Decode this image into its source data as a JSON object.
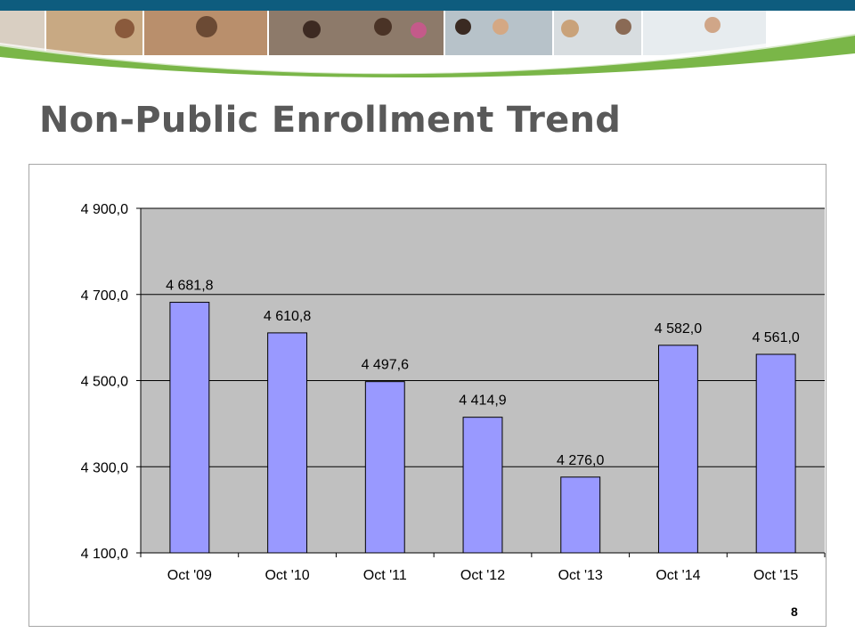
{
  "slide": {
    "title": "Non-Public Enrollment Trend",
    "page_number": "8"
  },
  "colors": {
    "header_band": "#0e5c7e",
    "swoosh_green": "#7ab648",
    "bar_fill": "#9999ff",
    "plot_background": "#c0c0c0",
    "title_text": "#595959"
  },
  "chart_data": {
    "type": "bar",
    "categories": [
      "Oct '09",
      "Oct '10",
      "Oct '11",
      "Oct '12",
      "Oct '13",
      "Oct '14",
      "Oct '15"
    ],
    "values": [
      4681.8,
      4610.8,
      4497.6,
      4414.9,
      4276.0,
      4582.0,
      4561.0
    ],
    "value_labels": [
      "4 681,8",
      "4 610,8",
      "4 497,6",
      "4 414,9",
      "4 276,0",
      "4 582,0",
      "4 561,0"
    ],
    "ylim": [
      4100,
      4900
    ],
    "y_ticks": [
      4100,
      4300,
      4500,
      4700,
      4900
    ],
    "y_tick_labels": [
      "4 100,0",
      "4 300,0",
      "4 500,0",
      "4 700,0",
      "4 900,0"
    ],
    "title": "",
    "xlabel": "",
    "ylabel": "",
    "grid": true,
    "legend": "none"
  }
}
